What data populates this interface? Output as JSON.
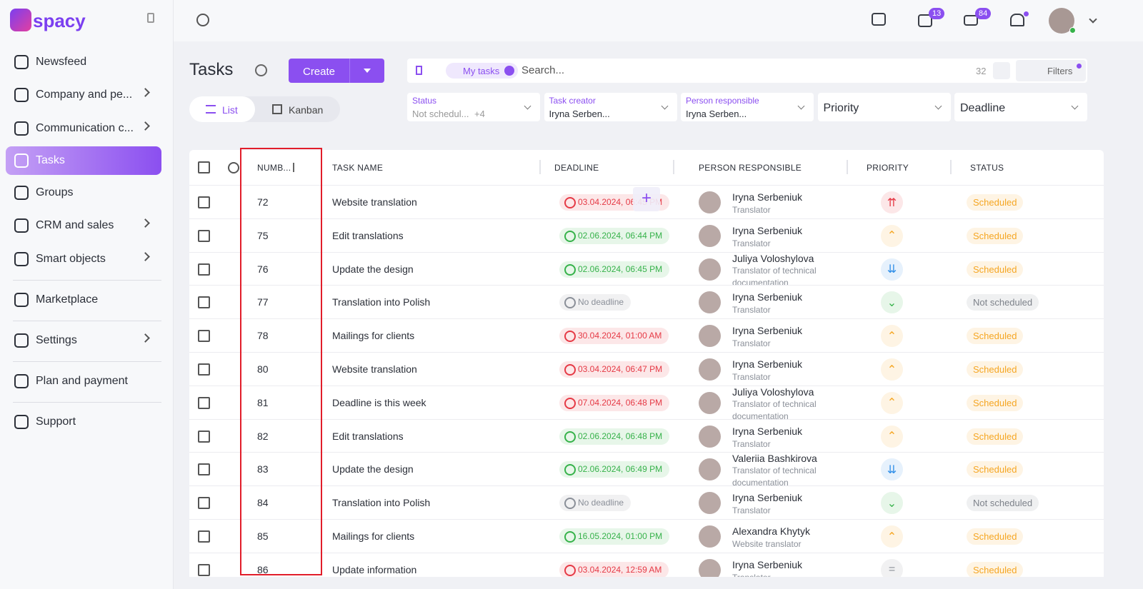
{
  "sidebar": {
    "logo": "spacy",
    "items": [
      {
        "label": "Newsfeed"
      },
      {
        "label": "Company and pe...",
        "arrow": true
      },
      {
        "label": "Communication c...",
        "arrow": true
      },
      {
        "label": "Tasks",
        "active": true
      },
      {
        "label": "Groups"
      },
      {
        "label": "CRM and sales",
        "arrow": true
      },
      {
        "label": "Smart objects",
        "arrow": true,
        "separator_after": true
      },
      {
        "label": "Marketplace",
        "separator_after": true
      },
      {
        "label": "Settings",
        "arrow": true,
        "separator_after": true
      },
      {
        "label": "Plan and payment",
        "separator_after": true
      },
      {
        "label": "Support"
      }
    ]
  },
  "topbar": {
    "chat_badge": 13,
    "mail_badge": 84
  },
  "header": {
    "title": "Tasks",
    "create": "Create",
    "views": [
      "List",
      "Kanban"
    ]
  },
  "search": {
    "chip": "My tasks",
    "placeholder": "Search...",
    "count": 32,
    "filters": "Filters"
  },
  "filters": [
    {
      "label": "Status",
      "value": "Not schedul...",
      "extra": "+4"
    },
    {
      "label": "Task creator",
      "value": "Iryna Serben..."
    },
    {
      "label": "Person responsible",
      "value": "Iryna Serben..."
    },
    {
      "placeholder": "Priority"
    },
    {
      "placeholder": "Deadline"
    }
  ],
  "table": {
    "columns": [
      "NUMB...",
      "TASK NAME",
      "DEADLINE",
      "PERSON RESPONSIBLE",
      "PRIORITY",
      "STATUS"
    ],
    "rows": [
      {
        "number": 72,
        "name": "Website translation",
        "deadline": "03.04.2024, 06:45 PM",
        "deadline_color": "#e53945",
        "person": "Iryna Serbeniuk",
        "role": "Translator",
        "priority_color": "#e53945",
        "status": "Scheduled",
        "status_color": "#f5a623"
      },
      {
        "number": 75,
        "name": "Edit translations",
        "deadline": "02.06.2024, 06:44 PM",
        "deadline_color": "#36b24a",
        "person": "Iryna Serbeniuk",
        "role": "Translator",
        "priority_color": "#f5a623",
        "status": "Scheduled",
        "status_color": "#f5a623"
      },
      {
        "number": 76,
        "name": "Update the design",
        "deadline": "02.06.2024, 06:45 PM",
        "deadline_color": "#36b24a",
        "person": "Juliya Voloshylova",
        "role": "Translator of technical documentation",
        "priority_color": "#2f8ee8",
        "status": "Scheduled",
        "status_color": "#f5a623"
      },
      {
        "number": 77,
        "name": "Translation into Polish",
        "deadline": "No deadline",
        "deadline_color": "#8a8f98",
        "person": "Iryna Serbeniuk",
        "role": "Translator",
        "priority_color": "#36b24a",
        "status": "Not scheduled",
        "status_color": "#7d828a"
      },
      {
        "number": 78,
        "name": "Mailings for clients",
        "deadline": "30.04.2024, 01:00 AM",
        "deadline_color": "#e53945",
        "person": "Iryna Serbeniuk",
        "role": "Translator",
        "priority_color": "#f5a623",
        "status": "Scheduled",
        "status_color": "#f5a623"
      },
      {
        "number": 80,
        "name": "Website translation",
        "deadline": "03.04.2024, 06:47 PM",
        "deadline_color": "#e53945",
        "person": "Iryna Serbeniuk",
        "role": "Translator",
        "priority_color": "#f5a623",
        "status": "Scheduled",
        "status_color": "#f5a623"
      },
      {
        "number": 81,
        "name": "Deadline is this week",
        "deadline": "07.04.2024, 06:48 PM",
        "deadline_color": "#e53945",
        "person": "Juliya Voloshylova",
        "role": "Translator of technical documentation",
        "priority_color": "#f5a623",
        "status": "Scheduled",
        "status_color": "#f5a623"
      },
      {
        "number": 82,
        "name": "Edit translations",
        "deadline": "02.06.2024, 06:48 PM",
        "deadline_color": "#36b24a",
        "person": "Iryna Serbeniuk",
        "role": "Translator",
        "priority_color": "#f5a623",
        "status": "Scheduled",
        "status_color": "#f5a623"
      },
      {
        "number": 83,
        "name": "Update the design",
        "deadline": "02.06.2024, 06:49 PM",
        "deadline_color": "#36b24a",
        "person": "Valeriia Bashkirova",
        "role": "Translator of technical documentation",
        "priority_color": "#2f8ee8",
        "status": "Scheduled",
        "status_color": "#f5a623"
      },
      {
        "number": 84,
        "name": "Translation into Polish",
        "deadline": "No deadline",
        "deadline_color": "#8a8f98",
        "person": "Iryna Serbeniuk",
        "role": "Translator",
        "priority_color": "#36b24a",
        "status": "Not scheduled",
        "status_color": "#7d828a"
      },
      {
        "number": 85,
        "name": "Mailings for clients",
        "deadline": "16.05.2024, 01:00 PM",
        "deadline_color": "#36b24a",
        "person": "Alexandra Khytyk",
        "role": "Website translator",
        "priority_color": "#f5a623",
        "status": "Scheduled",
        "status_color": "#f5a623"
      },
      {
        "number": 86,
        "name": "Update information",
        "deadline": "03.04.2024, 12:59 AM",
        "deadline_color": "#e53945",
        "person": "Iryna Serbeniuk",
        "role": "Translator",
        "priority_color": "#8a8f98",
        "status": "Scheduled",
        "status_color": "#f5a623"
      }
    ]
  }
}
